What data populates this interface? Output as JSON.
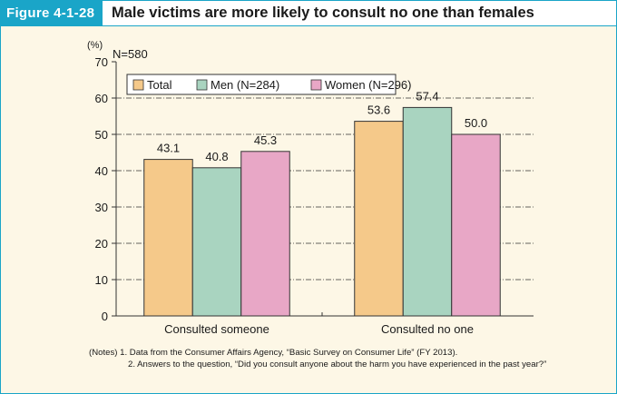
{
  "figure": {
    "label": "Figure 4-1-28",
    "title": "Male victims are more likely to consult no one than females"
  },
  "chart_data": {
    "type": "bar",
    "y_unit": "(%)",
    "n_label": "N=580",
    "categories": [
      "Consulted someone",
      "Consulted no one"
    ],
    "series": [
      {
        "name": "Total",
        "values": [
          43.1,
          53.6
        ],
        "color": "#f5c98a"
      },
      {
        "name": "Men (N=284)",
        "values": [
          40.8,
          57.4
        ],
        "color": "#a9d4c0"
      },
      {
        "name": "Women (N=296)",
        "values": [
          45.3,
          50.0
        ],
        "color": "#e8a7c6"
      }
    ],
    "value_labels": [
      [
        "43.1",
        "53.6"
      ],
      [
        "40.8",
        "57.4"
      ],
      [
        "45.3",
        "50.0"
      ]
    ],
    "ylim": [
      0,
      70
    ],
    "yticks": [
      0,
      10,
      20,
      30,
      40,
      50,
      60,
      70
    ],
    "grid": true,
    "legend_position": "top-left"
  },
  "notes": {
    "prefix": "(Notes) ",
    "items": [
      "1. Data from the Consumer Affairs Agency, “Basic Survey on Consumer Life” (FY 2013).",
      "2. Answers to the question, “Did you consult anyone about the harm you have experienced in the past year?”"
    ]
  }
}
